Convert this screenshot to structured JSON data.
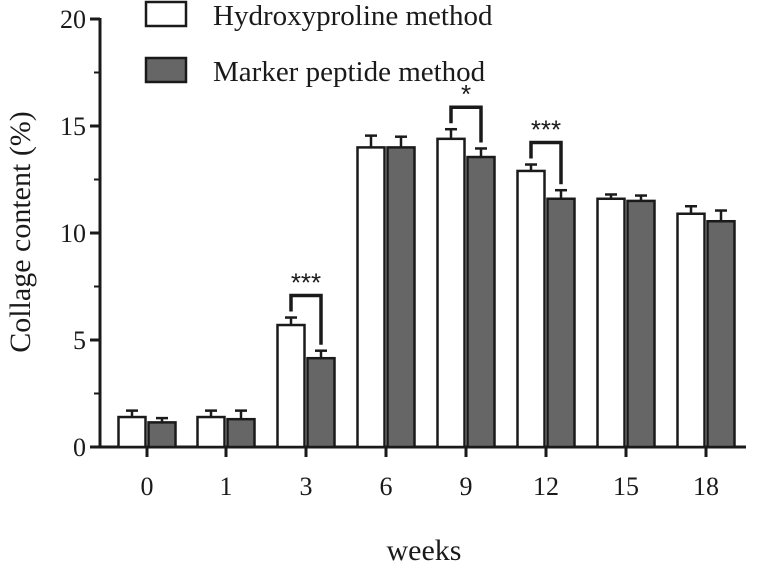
{
  "colors": {
    "series_hydroxyproline": "#ffffff",
    "series_marker": "#666666",
    "stroke": "#1a1a1a"
  },
  "chart_data": {
    "type": "bar",
    "title": "",
    "xlabel": "weeks",
    "ylabel": "Collage content (%)",
    "ylim": [
      0,
      20
    ],
    "yticks": [
      "0",
      "5",
      "10",
      "15",
      "20"
    ],
    "categories": [
      "0",
      "1",
      "3",
      "6",
      "9",
      "12",
      "15",
      "18"
    ],
    "legend_position": "top-left",
    "grid": false,
    "series": [
      {
        "name": "Hydroxyproline method",
        "values": [
          1.4,
          1.4,
          5.7,
          14.0,
          14.4,
          12.9,
          11.6,
          10.9
        ],
        "errors": [
          0.3,
          0.3,
          0.35,
          0.55,
          0.45,
          0.3,
          0.2,
          0.35
        ]
      },
      {
        "name": "Marker peptide method",
        "values": [
          1.15,
          1.3,
          4.15,
          14.0,
          13.55,
          11.6,
          11.5,
          10.55
        ],
        "errors": [
          0.2,
          0.4,
          0.35,
          0.5,
          0.4,
          0.4,
          0.25,
          0.5
        ]
      }
    ],
    "annotations": [
      {
        "category": "3",
        "label": "***"
      },
      {
        "category": "9",
        "label": "*"
      },
      {
        "category": "12",
        "label": "***"
      }
    ]
  }
}
